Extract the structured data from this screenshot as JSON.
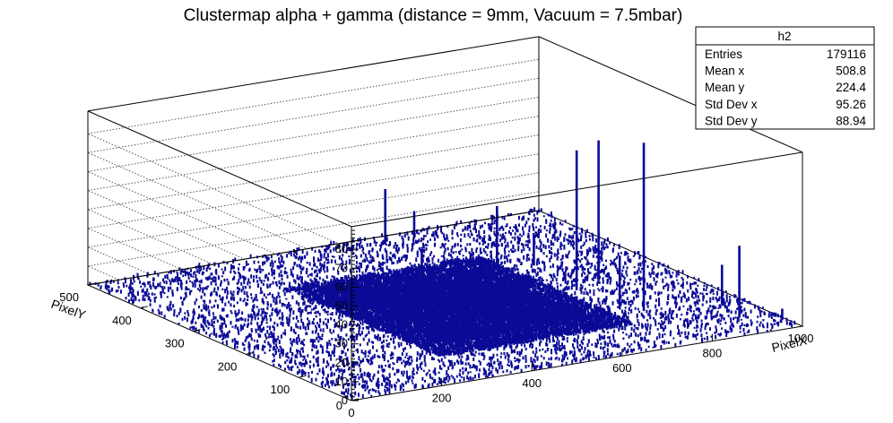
{
  "chart_data": {
    "type": "lego3d",
    "title": "Clustermap alpha + gamma (distance = 9mm, Vacuum = 7.5mbar)",
    "xlabel": "PixelX",
    "ylabel": "PixelY",
    "xlim": [
      0,
      1000
    ],
    "ylim": [
      0,
      500
    ],
    "zlim": [
      0,
      90
    ],
    "x_ticks": [
      0,
      200,
      400,
      600,
      800,
      1000
    ],
    "y_ticks": [
      0,
      100,
      200,
      300,
      400,
      500
    ],
    "z_ticks": [
      0,
      10,
      20,
      30,
      40,
      50,
      60,
      70,
      80
    ],
    "bar_color": "#0a0a96",
    "grid": true,
    "legend": "none",
    "spikes": [
      {
        "x": 800,
        "y": 130,
        "z": 89
      },
      {
        "x": 768,
        "y": 230,
        "z": 74
      },
      {
        "x": 840,
        "y": 250,
        "z": 74
      },
      {
        "x": 930,
        "y": 60,
        "z": 38
      },
      {
        "x": 630,
        "y": 475,
        "z": 29
      },
      {
        "x": 720,
        "y": 340,
        "z": 33
      },
      {
        "x": 770,
        "y": 150,
        "z": 28
      },
      {
        "x": 950,
        "y": 110,
        "z": 21
      },
      {
        "x": 790,
        "y": 330,
        "z": 16
      },
      {
        "x": 700,
        "y": 480,
        "z": 14
      },
      {
        "x": 990,
        "y": 30,
        "z": 6
      },
      {
        "x": 600,
        "y": 380,
        "z": 10
      },
      {
        "x": 550,
        "y": 300,
        "z": 6
      }
    ],
    "stats": {
      "name": "h2",
      "rows": [
        {
          "label": "Entries",
          "value": "179116"
        },
        {
          "label": "Mean x",
          "value": "508.8"
        },
        {
          "label": "Mean y",
          "value": "224.4"
        },
        {
          "label": "Std Dev x",
          "value": "95.26"
        },
        {
          "label": "Std Dev y",
          "value": "88.94"
        }
      ]
    }
  }
}
